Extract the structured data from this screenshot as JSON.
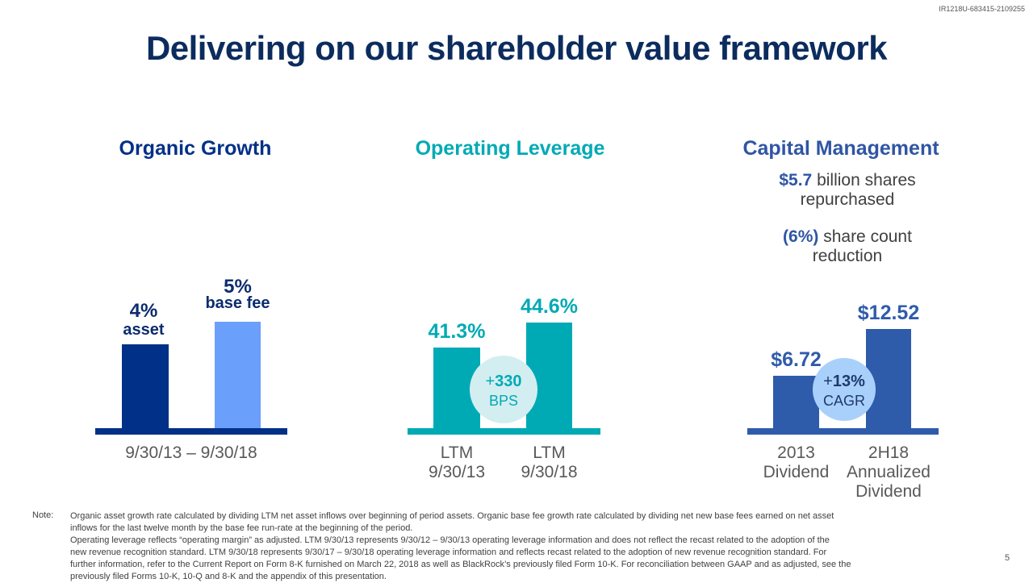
{
  "doc_id": "IR1218U-683415-2109255",
  "title": "Delivering on our shareholder value framework",
  "sections": {
    "organic_growth": {
      "heading": "Organic Growth",
      "color": "#003087"
    },
    "operating_leverage": {
      "heading": "Operating Leverage",
      "color": "#00aab5"
    },
    "capital_management": {
      "heading": "Capital Management",
      "color": "#2f55a4",
      "stat1_value": "$5.7",
      "stat1_text": " billion shares",
      "stat1_text2": "repurchased",
      "stat2_value": "(6%)",
      "stat2_text": " share count",
      "stat2_text2": "reduction"
    }
  },
  "chart_data": [
    {
      "type": "bar",
      "title": "Organic Growth",
      "categories": [
        "Organic asset growth",
        "Organic base fee growth"
      ],
      "values": [
        4,
        5
      ],
      "value_labels": [
        "4%",
        "5%"
      ],
      "sub_labels": [
        "asset",
        "base fee"
      ],
      "colors": [
        "#003087",
        "#6a9ffb"
      ],
      "axis_color": "#003087",
      "xlabel": "9/30/13 – 9/30/18"
    },
    {
      "type": "bar",
      "title": "Operating Leverage",
      "categories": [
        "LTM 9/30/13",
        "LTM 9/30/18"
      ],
      "category_lines": [
        [
          "LTM",
          "9/30/13"
        ],
        [
          "LTM",
          "9/30/18"
        ]
      ],
      "values": [
        41.3,
        44.6
      ],
      "value_labels": [
        "41.3%",
        "44.6%"
      ],
      "colors": [
        "#00aab5",
        "#00aab5"
      ],
      "axis_color": "#00aab5",
      "badge": {
        "line1_prefix": "+",
        "line1_value": "330",
        "line2": "BPS",
        "fill": "#d3eef0",
        "text_color": "#00aab5"
      }
    },
    {
      "type": "bar",
      "title": "Capital Management",
      "categories": [
        "2013 Dividend",
        "2H18 Annualized Dividend"
      ],
      "category_lines": [
        [
          "2013",
          "Dividend"
        ],
        [
          "2H18",
          "Annualized",
          "Dividend"
        ]
      ],
      "values": [
        6.72,
        12.52
      ],
      "value_labels": [
        "$6.72",
        "$12.52"
      ],
      "colors": [
        "#2f5bab",
        "#2f5bab"
      ],
      "axis_color": "#2f5bab",
      "badge": {
        "line1_prefix": "+",
        "line1_value": "13%",
        "line2": "CAGR",
        "fill": "#a9d0fb",
        "text_color": "#1f3a6e"
      }
    }
  ],
  "note": {
    "label": "Note:",
    "lines": [
      "Organic asset growth rate calculated by dividing LTM net asset inflows over beginning of period assets. Organic base fee growth rate calculated by dividing net new base fees earned on net asset",
      "inflows for the last twelve month by the base fee run-rate at the beginning of the period.",
      "Operating leverage reflects “operating margin” as adjusted. LTM 9/30/13 represents 9/30/12 – 9/30/13 operating leverage information and does not reflect the recast related to the adoption of the",
      "new revenue recognition standard. LTM 9/30/18 represents 9/30/17 – 9/30/18 operating leverage information and reflects recast related to the adoption of new revenue recognition standard. For",
      "further information, refer to the Current Report on Form 8-K furnished on March 22, 2018 as well as BlackRock’s previously filed Form 10-K. For reconciliation between GAAP and as adjusted, see the",
      "previously filed Forms 10-K, 10-Q and 8-K and the appendix of this presentation."
    ]
  },
  "page_number": "5"
}
